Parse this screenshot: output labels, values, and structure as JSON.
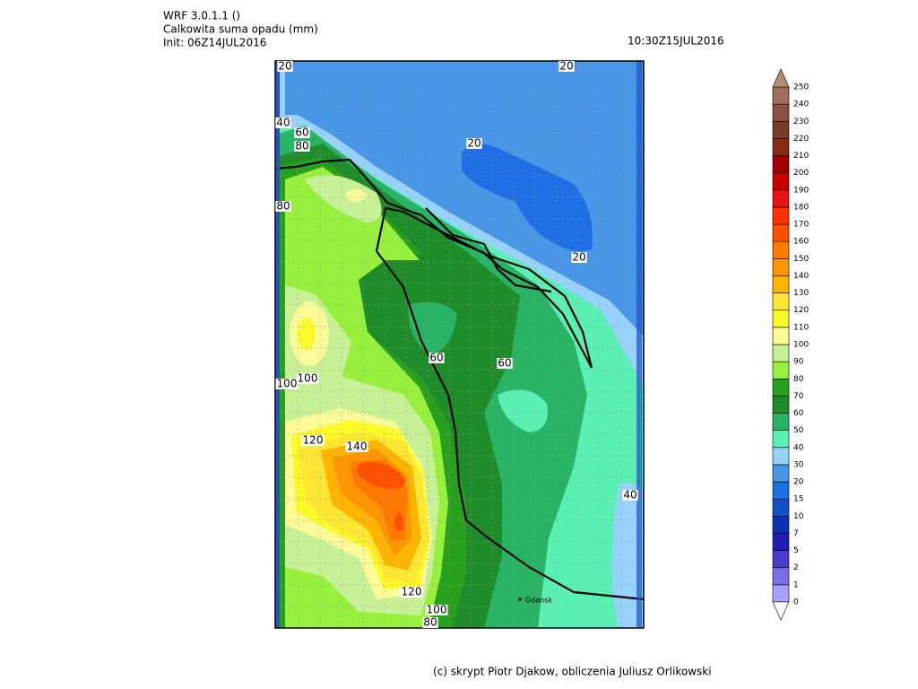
{
  "header": {
    "model": "WRF 3.0.1.1 ()",
    "title": "Calkowita suma opadu (mm)",
    "init": "Init: 06Z14JUL2016",
    "valid": "10:30Z15JUL2016"
  },
  "map": {
    "city": "Gdansk",
    "contour_labels": [
      "20",
      "20",
      "40",
      "60",
      "80",
      "20",
      "80",
      "20",
      "60",
      "60",
      "100",
      "100",
      "120",
      "140",
      "40",
      "120",
      "100",
      "80"
    ]
  },
  "colorbar": {
    "levels": [
      0,
      1,
      2,
      5,
      7,
      10,
      15,
      20,
      30,
      40,
      50,
      60,
      70,
      80,
      90,
      100,
      110,
      120,
      130,
      140,
      150,
      160,
      170,
      180,
      190,
      200,
      210,
      220,
      230,
      240,
      250
    ],
    "colors": [
      "#a6a0ff",
      "#7b6ee6",
      "#4b3ccc",
      "#1e1eb4",
      "#0a32b4",
      "#1450c8",
      "#1e6ee6",
      "#4a96e6",
      "#96d2fa",
      "#5af0b4",
      "#28b464",
      "#1e8c28",
      "#28a01e",
      "#96f03c",
      "#c8f096",
      "#fafa96",
      "#fafa28",
      "#ffe632",
      "#ffb400",
      "#ff9600",
      "#ff7800",
      "#ff5000",
      "#ff3200",
      "#e61414",
      "#c80000",
      "#a00000",
      "#8c2814",
      "#783c28",
      "#8c5046",
      "#a06e5a",
      "#b48c78"
    ]
  },
  "footer": {
    "credit": "(c) skrypt Piotr Djakow, obliczenia Juliusz Orlikowski"
  }
}
